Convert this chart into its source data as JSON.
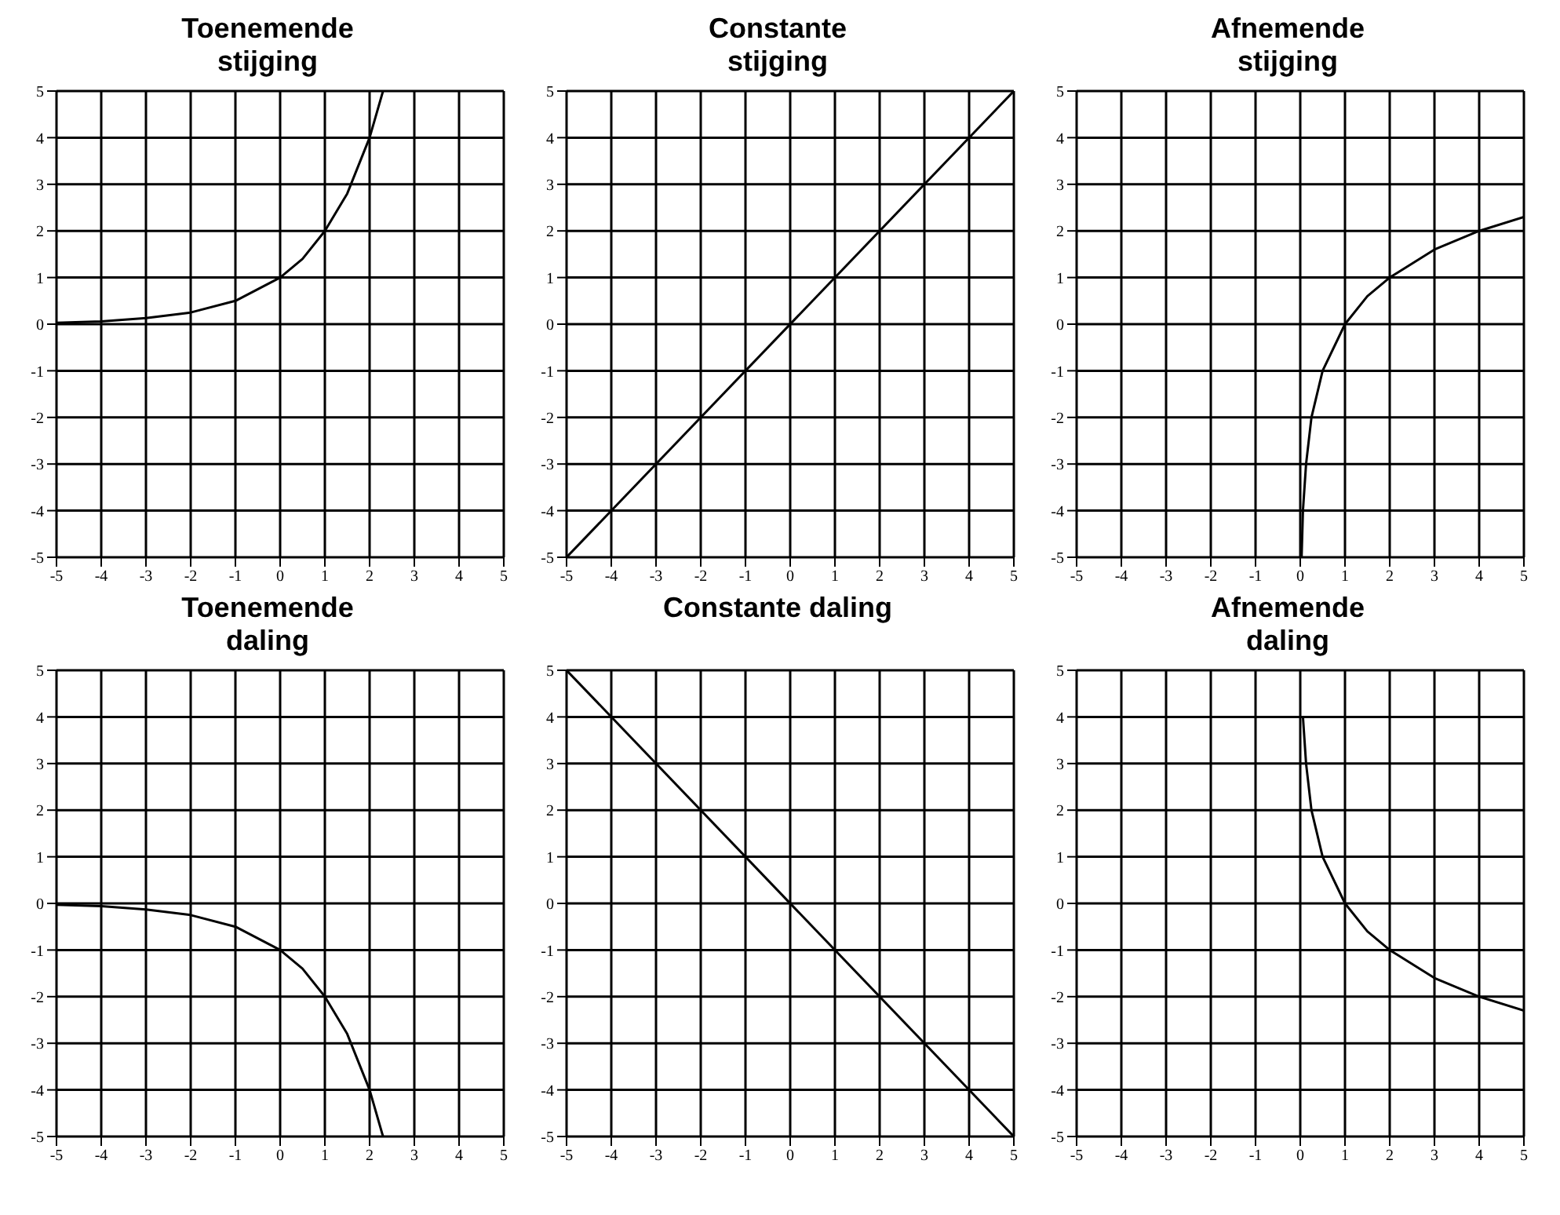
{
  "chart_data": [
    {
      "type": "line",
      "title": "Toenemende stijging",
      "x": [
        -5,
        -4,
        -3,
        -2,
        -1,
        0,
        0.5,
        1,
        1.5,
        2,
        2.3
      ],
      "values": [
        0.03,
        0.06,
        0.13,
        0.25,
        0.5,
        1,
        1.4,
        2,
        2.8,
        4,
        5
      ],
      "color": "#000000",
      "xlim": [
        -5,
        5
      ],
      "ylim": [
        -5,
        5
      ],
      "xticks": [
        -5,
        -4,
        -3,
        -2,
        -1,
        0,
        1,
        2,
        3,
        4,
        5
      ],
      "yticks": [
        -5,
        -4,
        -3,
        -2,
        -1,
        0,
        1,
        2,
        3,
        4,
        5
      ],
      "grid": true,
      "legend": false,
      "marker": "none",
      "line_style": "solid"
    },
    {
      "type": "line",
      "title": "Constante stijging",
      "x": [
        -5,
        5
      ],
      "values": [
        -5,
        5
      ],
      "color": "#000000",
      "xlim": [
        -5,
        5
      ],
      "ylim": [
        -5,
        5
      ],
      "xticks": [
        -5,
        -4,
        -3,
        -2,
        -1,
        0,
        1,
        2,
        3,
        4,
        5
      ],
      "yticks": [
        -5,
        -4,
        -3,
        -2,
        -1,
        0,
        1,
        2,
        3,
        4,
        5
      ],
      "grid": true,
      "legend": false,
      "marker": "none",
      "line_style": "solid"
    },
    {
      "type": "line",
      "title": "Afnemende stijging",
      "x": [
        0.03,
        0.06,
        0.13,
        0.25,
        0.5,
        1,
        1.5,
        2,
        3,
        4,
        5
      ],
      "values": [
        -5,
        -4,
        -3,
        -2,
        -1,
        0,
        0.6,
        1,
        1.6,
        2,
        2.3
      ],
      "color": "#000000",
      "xlim": [
        -5,
        5
      ],
      "ylim": [
        -5,
        5
      ],
      "xticks": [
        -5,
        -4,
        -3,
        -2,
        -1,
        0,
        1,
        2,
        3,
        4,
        5
      ],
      "yticks": [
        -5,
        -4,
        -3,
        -2,
        -1,
        0,
        1,
        2,
        3,
        4,
        5
      ],
      "grid": true,
      "legend": false,
      "marker": "none",
      "line_style": "solid"
    },
    {
      "type": "line",
      "title": "Toenemende daling",
      "x": [
        -5,
        -4,
        -3,
        -2,
        -1,
        0,
        0.5,
        1,
        1.5,
        2,
        2.3
      ],
      "values": [
        -0.03,
        -0.06,
        -0.13,
        -0.25,
        -0.5,
        -1,
        -1.4,
        -2,
        -2.8,
        -4,
        -5
      ],
      "color": "#000000",
      "xlim": [
        -5,
        5
      ],
      "ylim": [
        -5,
        5
      ],
      "xticks": [
        -5,
        -4,
        -3,
        -2,
        -1,
        0,
        1,
        2,
        3,
        4,
        5
      ],
      "yticks": [
        -5,
        -4,
        -3,
        -2,
        -1,
        0,
        1,
        2,
        3,
        4,
        5
      ],
      "grid": true,
      "legend": false,
      "marker": "none",
      "line_style": "solid"
    },
    {
      "type": "line",
      "title": "Constante daling",
      "x": [
        -5,
        5
      ],
      "values": [
        5,
        -5
      ],
      "color": "#000000",
      "xlim": [
        -5,
        5
      ],
      "ylim": [
        -5,
        5
      ],
      "xticks": [
        -5,
        -4,
        -3,
        -2,
        -1,
        0,
        1,
        2,
        3,
        4,
        5
      ],
      "yticks": [
        -5,
        -4,
        -3,
        -2,
        -1,
        0,
        1,
        2,
        3,
        4,
        5
      ],
      "grid": true,
      "legend": false,
      "marker": "none",
      "line_style": "solid"
    },
    {
      "type": "line",
      "title": "Afnemende daling",
      "x": [
        0.06,
        0.13,
        0.25,
        0.5,
        1,
        1.5,
        2,
        3,
        4,
        5
      ],
      "values": [
        4,
        3,
        2,
        1,
        0,
        -0.6,
        -1,
        -1.6,
        -2,
        -2.3
      ],
      "color": "#000000",
      "xlim": [
        -5,
        5
      ],
      "ylim": [
        -5,
        5
      ],
      "xticks": [
        -5,
        -4,
        -3,
        -2,
        -1,
        0,
        1,
        2,
        3,
        4,
        5
      ],
      "yticks": [
        -5,
        -4,
        -3,
        -2,
        -1,
        0,
        1,
        2,
        3,
        4,
        5
      ],
      "grid": true,
      "legend": false,
      "marker": "none",
      "line_style": "solid"
    }
  ]
}
